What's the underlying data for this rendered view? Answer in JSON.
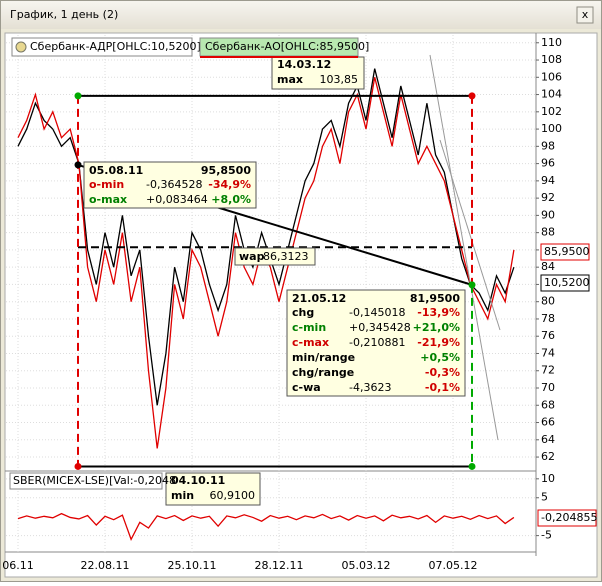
{
  "window": {
    "title": "График, 1 день (2)",
    "close": "x"
  },
  "chart_data": [
    {
      "type": "line",
      "categories": [
        "06.11",
        null,
        null,
        null,
        null,
        null,
        null,
        null,
        null,
        null,
        "22.08.11",
        null,
        null,
        null,
        null,
        null,
        null,
        null,
        null,
        null,
        "25.10.11",
        null,
        null,
        null,
        null,
        null,
        null,
        null,
        null,
        null,
        "28.12.11",
        null,
        null,
        null,
        null,
        null,
        null,
        null,
        null,
        null,
        "05.03.12",
        null,
        null,
        null,
        null,
        null,
        null,
        null,
        null,
        null,
        "07.05.12",
        null,
        null,
        null,
        null,
        null,
        null,
        null
      ],
      "series": [
        {
          "name": "Сбербанк-АДР[OHLC:10,5200]",
          "color": "#000000",
          "values": [
            98,
            100,
            103,
            101,
            100,
            98,
            99,
            96,
            86,
            82,
            88,
            84,
            90,
            83,
            86,
            76,
            68,
            74,
            84,
            80,
            88,
            86,
            82,
            79,
            82,
            90,
            86,
            84,
            88,
            85,
            82,
            86,
            90,
            94,
            96,
            100,
            101,
            98,
            103,
            105,
            101,
            107,
            103,
            99,
            105,
            101,
            97,
            103,
            97,
            95,
            90,
            85,
            82,
            81,
            79,
            83,
            81,
            84
          ]
        },
        {
          "name": "Сбербанк-АО[OHLC:85,9500]",
          "color": "#e00000",
          "values": [
            99,
            101,
            104,
            100,
            102,
            99,
            100,
            96,
            84,
            80,
            86,
            82,
            88,
            80,
            84,
            72,
            63,
            70,
            82,
            78,
            86,
            84,
            80,
            76,
            80,
            88,
            84,
            82,
            86,
            84,
            80,
            84,
            88,
            92,
            94,
            98,
            100,
            96,
            102,
            104,
            100,
            106,
            102,
            98,
            104,
            100,
            96,
            98,
            96,
            94,
            90,
            86,
            82,
            80,
            78,
            82,
            80,
            86
          ]
        }
      ],
      "ylim": [
        60.5,
        110.9
      ],
      "yticks": [
        62,
        64,
        66,
        68,
        70,
        72,
        74,
        76,
        78,
        80,
        82,
        84,
        86,
        88,
        90,
        92,
        94,
        96,
        98,
        100,
        102,
        104,
        106,
        108,
        110
      ],
      "grid": true,
      "last_labels": [
        "85,9500",
        "10,5200"
      ],
      "max": {
        "date": "14.03.12",
        "label": "max",
        "value": {
          "value": 103.85,
          "label": "103,85"
        }
      },
      "min": {
        "date": "04.10.11",
        "label": "min",
        "value": {
          "value": 60.91,
          "label": "60,9100"
        }
      },
      "wap": {
        "label": "wap",
        "value": {
          "value": 86.3123,
          "label": "86,3123"
        }
      },
      "start": {
        "date": "05.08.11",
        "value": {
          "value": 95.85,
          "label": "95,8500"
        },
        "rows": [
          {
            "cells": [
              "o-min",
              "-0,364528",
              "-34,9%"
            ],
            "color": "#d00000",
            "label_color": "#d00000"
          },
          {
            "cells": [
              "o-max",
              "+0,083464",
              "+8,0%"
            ],
            "color": "#008000",
            "label_color": "#008000"
          }
        ]
      },
      "end": {
        "date": "21.05.12",
        "value": {
          "value": 81.95,
          "label": "81,9500"
        },
        "rows": [
          {
            "cells": [
              "chg",
              "-0,145018",
              "-13,9%"
            ],
            "color": "#d00000",
            "label_color": "#000000"
          },
          {
            "cells": [
              "c-min",
              "+0,345428",
              "+21,0%"
            ],
            "color": "#008000",
            "label_color": "#008000"
          },
          {
            "cells": [
              "c-max",
              "-0,210881",
              "-21,9%"
            ],
            "color": "#d00000",
            "label_color": "#d00000"
          },
          {
            "cells": [
              "min/range",
              "+0,5%"
            ],
            "color": "#008000",
            "label_color": "#000000"
          },
          {
            "cells": [
              "chg/range",
              "-0,3%"
            ],
            "color": "#d00000",
            "label_color": "#000000"
          },
          {
            "cells": [
              "c-wa",
              "-4,3623",
              "-0,1%"
            ],
            "color": "#d00000",
            "label_color": "#000000"
          }
        ]
      }
    },
    {
      "type": "line",
      "series": [
        {
          "name": "SBER(MICEX-LSE)[Val:-0,2048",
          "color": "#e00000",
          "values": [
            -0.5,
            0.2,
            -0.4,
            0.1,
            -0.3,
            0.8,
            -0.2,
            -0.6,
            0.3,
            -2.2,
            0.1,
            -0.8,
            0.4,
            -6,
            -1.5,
            -3,
            0.2,
            -0.5,
            0.3,
            -1,
            0.2,
            -0.4,
            0.1,
            -2.5,
            0.2,
            -0.3,
            0.5,
            -0.2,
            -1.2,
            0.3,
            -0.4,
            0.1,
            -0.8,
            0.2,
            -0.3,
            0.6,
            -0.5,
            0.2,
            -0.9,
            0.3,
            -0.4,
            0.2,
            -1.1,
            0.4,
            -0.3,
            0.1,
            -0.6,
            0.3,
            -1.5,
            0.2,
            -0.4,
            0.1,
            -0.7,
            0.3,
            -0.5,
            0.2,
            -1.8,
            -0.2
          ]
        }
      ],
      "ylim": [
        -8.8,
        11.8
      ],
      "yticks": [
        10,
        5,
        -5
      ],
      "last_label": "-0,204855"
    }
  ]
}
